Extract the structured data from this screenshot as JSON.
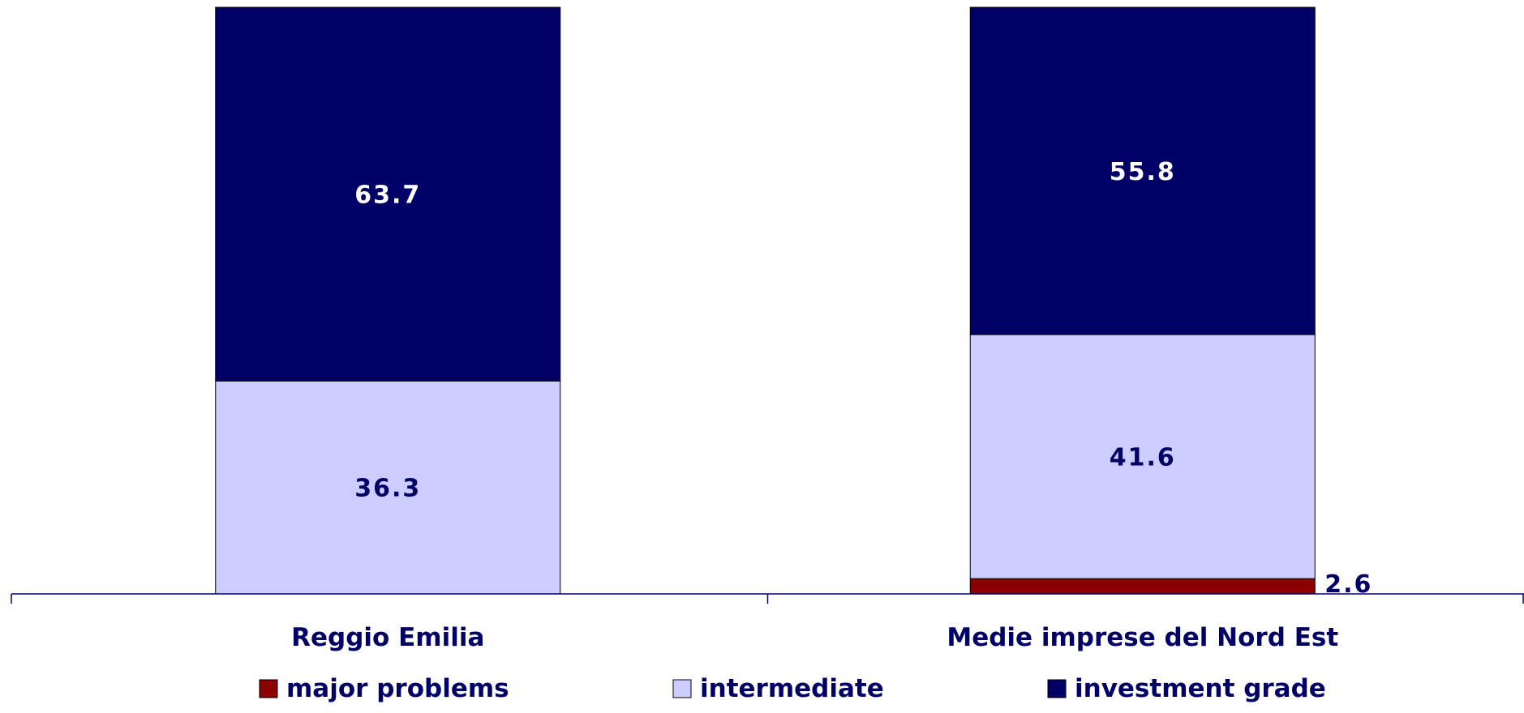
{
  "chart_data": {
    "type": "bar",
    "stacked": true,
    "categories": [
      "Reggio Emilia",
      "Medie imprese del Nord Est"
    ],
    "series": [
      {
        "name": "major problems",
        "values": [
          0,
          2.6
        ],
        "color": "#8b0000",
        "label_color": "#000066"
      },
      {
        "name": "intermediate",
        "values": [
          36.3,
          41.6
        ],
        "color": "#ccccff",
        "label_color": "#000066"
      },
      {
        "name": "investment grade",
        "values": [
          63.7,
          55.8
        ],
        "color": "#000066",
        "label_color": "#ffffff"
      }
    ],
    "ylim": [
      0,
      100
    ],
    "grid": false,
    "legend_position": "bottom"
  }
}
